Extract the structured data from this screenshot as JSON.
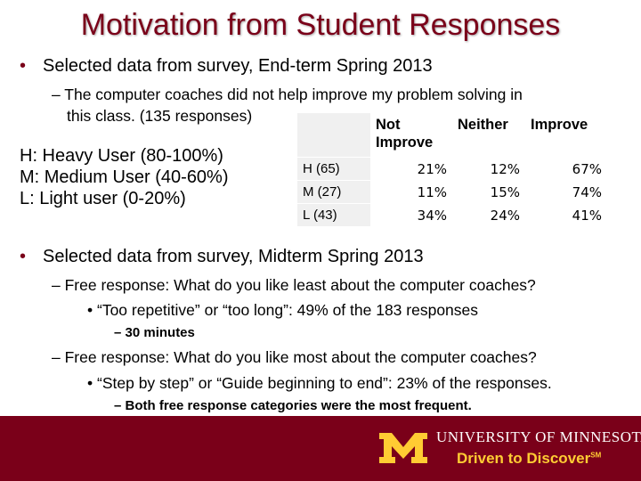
{
  "title": "Motivation from Student Responses",
  "section1": {
    "bullet": "Selected data from survey, End-term Spring 2013",
    "sub": "– The computer coaches did not help improve my problem solving in",
    "sub_cont": "this class.  (135 responses)"
  },
  "legend": [
    "H: Heavy User (80-100%)",
    "M: Medium User (40-60%)",
    "L: Light user (0-20%)"
  ],
  "table": {
    "headers": [
      "",
      "Not Improve",
      "Neither",
      "Improve"
    ],
    "rows": [
      {
        "label": "H (65)",
        "values": [
          "21%",
          "12%",
          "67%"
        ]
      },
      {
        "label": "M (27)",
        "values": [
          "11%",
          "15%",
          "74%"
        ]
      },
      {
        "label": "L (43)",
        "values": [
          "34%",
          "24%",
          "41%"
        ]
      }
    ]
  },
  "section2": {
    "bullet": "Selected data from survey, Midterm Spring 2013",
    "q1": "– Free response: What do you like least about the computer coaches?",
    "q1_answer": "“Too repetitive” or “too long”: 49% of the 183 responses",
    "q1_note": "– 30 minutes",
    "q2": "– Free response: What do you like most about the computer coaches?",
    "q2_answer": "“Step by step” or “Guide beginning to end”: 23% of the responses.",
    "q2_note": "– Both free response categories were the most frequent."
  },
  "footer": {
    "university": "UNIVERSITY OF MINNESOTA",
    "tagline": "Driven to Discover",
    "tagline_mark": "SM",
    "colors": {
      "maroon": "#7a0019",
      "gold": "#ffcc33"
    }
  }
}
